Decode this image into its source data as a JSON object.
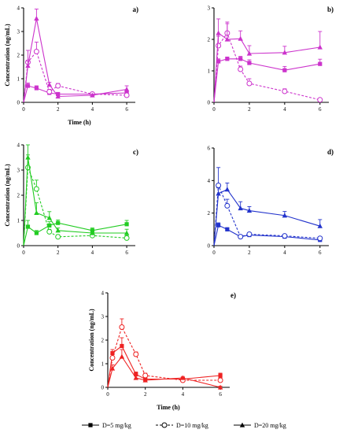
{
  "chart_data": [
    {
      "type": "line",
      "panel_label": "a)",
      "color": "#cc33cc",
      "xlabel": "Time (h)",
      "ylabel": "Concentration (ng/mL)",
      "xlim": [
        0,
        6.5
      ],
      "ylim": [
        0,
        4
      ],
      "xticks": [
        0,
        2,
        4,
        6
      ],
      "yticks": [
        0,
        1,
        2,
        3,
        4
      ],
      "x": [
        0,
        0.25,
        0.75,
        1.5,
        2,
        4,
        6
      ],
      "series": [
        {
          "marker": "square",
          "dash": "solid",
          "values": [
            0,
            0.7,
            0.6,
            0.4,
            0.35,
            0.35,
            0.4
          ],
          "err": [
            0,
            0.12,
            0.1,
            0.08,
            0.05,
            0.05,
            0.1
          ]
        },
        {
          "marker": "circle-open",
          "dash": "dashed",
          "values": [
            0,
            1.7,
            2.15,
            0.45,
            0.7,
            0.35,
            0.3
          ],
          "err": [
            0,
            0.5,
            0.4,
            0.1,
            0.1,
            0.05,
            0.1
          ]
        },
        {
          "marker": "triangle",
          "dash": "solid",
          "values": [
            0,
            1.55,
            3.55,
            0.75,
            0.25,
            0.3,
            0.55
          ],
          "err": [
            0,
            0.2,
            0.4,
            0.1,
            0.05,
            0.05,
            0.15
          ]
        }
      ]
    },
    {
      "type": "line",
      "panel_label": "b)",
      "color": "#cc33cc",
      "xlabel": "",
      "ylabel": "",
      "xlim": [
        0,
        6.5
      ],
      "ylim": [
        0,
        3
      ],
      "xticks": [
        0,
        2,
        4,
        6
      ],
      "yticks": [
        0,
        1,
        2,
        3
      ],
      "x": [
        0,
        0.25,
        0.75,
        1.5,
        2,
        4,
        6
      ],
      "series": [
        {
          "marker": "square",
          "dash": "solid",
          "values": [
            0,
            1.3,
            1.38,
            1.38,
            1.25,
            1.02,
            1.22
          ],
          "err": [
            0,
            0.08,
            0.06,
            0.08,
            0.1,
            0.12,
            0.15
          ]
        },
        {
          "marker": "circle-open",
          "dash": "dashed",
          "values": [
            0,
            1.8,
            2.2,
            1.05,
            0.6,
            0.35,
            0.08
          ],
          "err": [
            0,
            0.3,
            0.35,
            0.1,
            0.15,
            0.08,
            0.03
          ]
        },
        {
          "marker": "triangle",
          "dash": "solid",
          "values": [
            0,
            2.2,
            2.0,
            2.02,
            1.55,
            1.58,
            1.75
          ],
          "err": [
            0,
            0.45,
            0.5,
            0.25,
            0.25,
            0.2,
            0.5
          ]
        }
      ]
    },
    {
      "type": "line",
      "panel_label": "c)",
      "color": "#22cc22",
      "xlabel": "",
      "ylabel": "Concentration (ng/mL)",
      "xlim": [
        0,
        6.5
      ],
      "ylim": [
        0,
        4
      ],
      "xticks": [
        0,
        2,
        4,
        6
      ],
      "yticks": [
        0,
        1,
        2,
        3,
        4
      ],
      "x": [
        0,
        0.25,
        0.75,
        1.5,
        2,
        4,
        6
      ],
      "series": [
        {
          "marker": "square",
          "dash": "solid",
          "values": [
            0,
            0.75,
            0.5,
            0.8,
            0.9,
            0.6,
            0.85
          ],
          "err": [
            0,
            0.25,
            0.1,
            0.15,
            0.12,
            0.1,
            0.15
          ]
        },
        {
          "marker": "circle-open",
          "dash": "dashed",
          "values": [
            0,
            3.1,
            2.25,
            0.55,
            0.35,
            0.4,
            0.3
          ],
          "err": [
            0,
            0.5,
            0.35,
            0.1,
            0.08,
            0.06,
            0.1
          ]
        },
        {
          "marker": "triangle",
          "dash": "solid",
          "values": [
            0,
            3.5,
            1.3,
            1.1,
            0.6,
            0.5,
            0.5
          ],
          "err": [
            0,
            0.5,
            0.4,
            0.25,
            0.1,
            0.08,
            0.15
          ]
        }
      ]
    },
    {
      "type": "line",
      "panel_label": "d)",
      "color": "#2233cc",
      "xlabel": "",
      "ylabel": "",
      "xlim": [
        0,
        6.5
      ],
      "ylim": [
        0,
        6
      ],
      "xticks": [
        0,
        2,
        4,
        6
      ],
      "yticks": [
        0,
        2,
        4,
        6
      ],
      "x": [
        0,
        0.25,
        0.75,
        1.5,
        2,
        4,
        6
      ],
      "series": [
        {
          "marker": "square",
          "dash": "solid",
          "values": [
            0,
            1.25,
            1.0,
            0.55,
            0.65,
            0.55,
            0.35
          ],
          "err": [
            0,
            0.15,
            0.1,
            0.08,
            0.08,
            0.08,
            0.08
          ]
        },
        {
          "marker": "circle-open",
          "dash": "dashed",
          "values": [
            0,
            3.7,
            2.45,
            0.55,
            0.7,
            0.6,
            0.45
          ],
          "err": [
            0,
            1.1,
            0.4,
            0.1,
            0.08,
            0.08,
            0.1
          ]
        },
        {
          "marker": "triangle",
          "dash": "solid",
          "values": [
            0,
            3.2,
            3.45,
            2.3,
            2.15,
            1.85,
            1.2
          ],
          "err": [
            0,
            0.35,
            0.4,
            0.4,
            0.25,
            0.25,
            0.4
          ]
        }
      ]
    },
    {
      "type": "line",
      "panel_label": "e)",
      "color": "#ee2222",
      "xlabel": "Time (h)",
      "ylabel": "Concentration (ng/mL)",
      "xlim": [
        0,
        6.5
      ],
      "ylim": [
        0,
        4
      ],
      "xticks": [
        0,
        2,
        4,
        6
      ],
      "yticks": [
        0,
        1,
        2,
        3,
        4
      ],
      "x": [
        0,
        0.25,
        0.75,
        1.5,
        2,
        4,
        6
      ],
      "series": [
        {
          "marker": "square",
          "dash": "solid",
          "values": [
            0,
            1.45,
            1.75,
            0.55,
            0.35,
            0.35,
            0.5
          ],
          "err": [
            0,
            0.15,
            0.35,
            0.1,
            0.08,
            0.06,
            0.1
          ]
        },
        {
          "marker": "circle-open",
          "dash": "dashed",
          "values": [
            0,
            1.25,
            2.55,
            1.4,
            0.5,
            0.3,
            0.3
          ],
          "err": [
            0,
            0.2,
            0.35,
            0.1,
            0.1,
            0.06,
            0.1
          ]
        },
        {
          "marker": "triangle",
          "dash": "solid",
          "values": [
            0,
            0.8,
            1.3,
            0.4,
            0.3,
            0.4,
            0.0
          ],
          "err": [
            0,
            0.15,
            0.3,
            0.1,
            0.08,
            0.06,
            0.05
          ]
        }
      ]
    }
  ],
  "legend": {
    "placement": "bottom",
    "items": [
      {
        "marker": "square",
        "dash": "solid",
        "label": "D=5 mg/kg"
      },
      {
        "marker": "circle-open",
        "dash": "dashed",
        "label": "D=10 mg/kg"
      },
      {
        "marker": "triangle",
        "dash": "solid",
        "label": "D=20 mg/kg"
      }
    ]
  }
}
